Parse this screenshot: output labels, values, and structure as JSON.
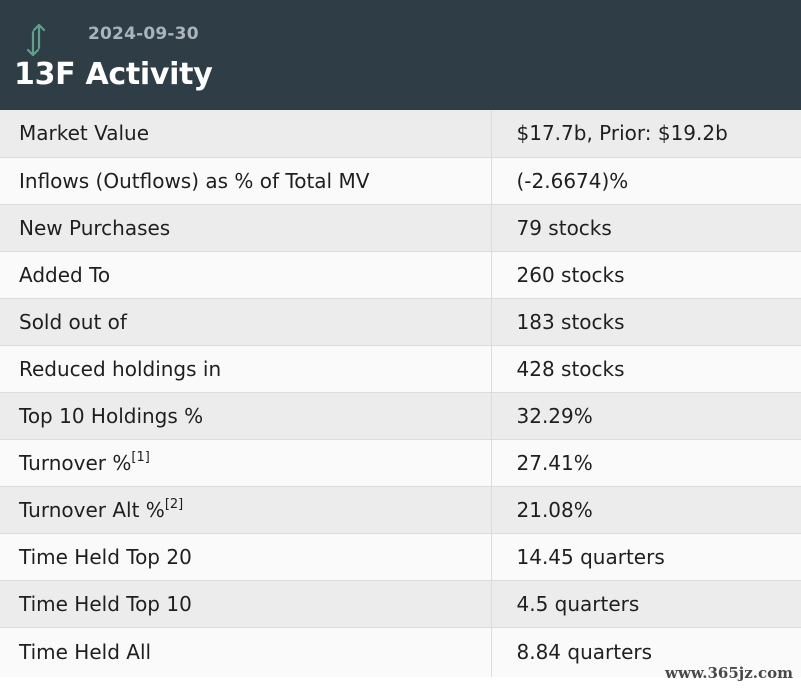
{
  "header": {
    "icon": "up-down-arrows-icon",
    "icon_color": "#5fa08c",
    "date": "2024-09-30",
    "title": "13F Activity",
    "background": "#2f3d47"
  },
  "rows": [
    {
      "label": "Market Value",
      "value": "$17.7b, Prior: $19.2b"
    },
    {
      "label": "Inflows (Outflows) as % of Total MV",
      "value": "(-2.6674)%",
      "value_color": "#e8141c"
    },
    {
      "label": "New Purchases",
      "value": "79 stocks"
    },
    {
      "label": "Added To",
      "value": "260 stocks"
    },
    {
      "label": "Sold out of",
      "value": "183 stocks"
    },
    {
      "label": "Reduced holdings in",
      "value": "428 stocks"
    },
    {
      "label": "Top 10 Holdings %",
      "value": "32.29%"
    },
    {
      "label": "Turnover %",
      "footnote": "[1]",
      "value": "27.41%"
    },
    {
      "label": "Turnover Alt %",
      "footnote": "[2]",
      "value": "21.08%"
    },
    {
      "label": "Time Held Top 20",
      "value": "14.45 quarters"
    },
    {
      "label": "Time Held Top 10",
      "value": "4.5 quarters"
    },
    {
      "label": "Time Held All",
      "value": "8.84 quarters"
    }
  ],
  "watermark": "www.365jz.com"
}
